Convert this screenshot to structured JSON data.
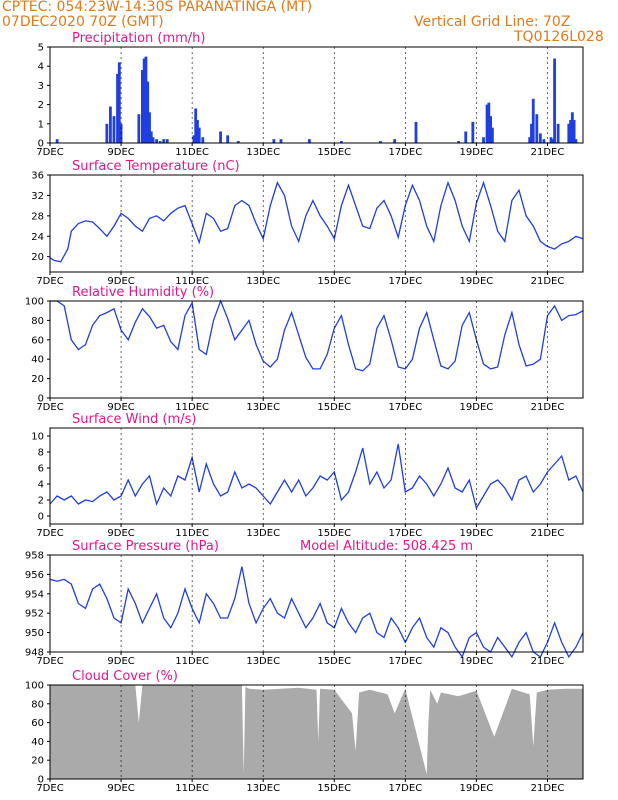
{
  "header": {
    "line1": "CPTEC:   054:23W-14:30S   PARANATINGA (MT)",
    "line2": "07DEC2020 70Z (GMT)",
    "vgrid": "Vertical Grid Line: 70Z",
    "code": "TQ0126L028"
  },
  "colors": {
    "header": "#e07a1a",
    "title": "#e0188c",
    "series": "#1f3fe0",
    "cloud": "#aaaaaa"
  },
  "x_ticks": [
    "7DEC",
    "9DEC",
    "11DEC",
    "13DEC",
    "15DEC",
    "17DEC",
    "19DEC",
    "21DEC"
  ],
  "x_tick_days": [
    7,
    9,
    11,
    13,
    15,
    17,
    19,
    21
  ],
  "chart_data": [
    {
      "id": "precip",
      "type": "bar",
      "title": "Precipitation (mm/h)",
      "ylim": [
        0,
        5
      ],
      "yticks": [
        0,
        1,
        2,
        3,
        4,
        5
      ],
      "xlim": [
        7,
        22
      ],
      "x": [
        7.2,
        8.6,
        8.7,
        8.8,
        8.9,
        8.95,
        9.0,
        9.5,
        9.6,
        9.65,
        9.7,
        9.75,
        9.8,
        9.85,
        9.9,
        10.0,
        10.1,
        10.2,
        10.3,
        11.05,
        11.1,
        11.15,
        11.2,
        11.3,
        11.8,
        12.0,
        12.3,
        13.3,
        13.5,
        14.3,
        15.2,
        16.3,
        16.7,
        17.3,
        18.5,
        18.7,
        18.9,
        19.2,
        19.3,
        19.35,
        19.4,
        19.45,
        20.5,
        20.55,
        20.6,
        20.7,
        20.8,
        20.9,
        21.1,
        21.15,
        21.2,
        21.3,
        21.6,
        21.65,
        21.7,
        21.75,
        21.8
      ],
      "values": [
        0.2,
        1.0,
        1.9,
        1.4,
        3.6,
        4.2,
        1.0,
        1.5,
        3.8,
        4.4,
        4.5,
        3.2,
        1.6,
        0.6,
        0.3,
        0.2,
        0.1,
        0.2,
        0.2,
        0.4,
        1.8,
        1.2,
        0.8,
        0.3,
        0.6,
        0.4,
        0.1,
        0.2,
        0.2,
        0.2,
        0.1,
        0.1,
        0.2,
        1.1,
        0.1,
        0.6,
        1.1,
        0.3,
        2.0,
        2.1,
        1.4,
        0.8,
        0.3,
        1.0,
        2.3,
        1.5,
        0.5,
        0.2,
        0.3,
        0.2,
        4.4,
        1.0,
        1.0,
        1.2,
        1.6,
        1.2,
        0.2
      ]
    },
    {
      "id": "temp",
      "type": "line",
      "title": "Surface Temperature (nC)",
      "ylim": [
        17,
        36
      ],
      "yticks": [
        20,
        24,
        28,
        32,
        36
      ],
      "xlim": [
        7,
        22
      ],
      "x": [
        7.0,
        7.1,
        7.3,
        7.5,
        7.6,
        7.8,
        8.0,
        8.2,
        8.4,
        8.6,
        8.8,
        9.0,
        9.2,
        9.4,
        9.6,
        9.8,
        10.0,
        10.2,
        10.4,
        10.6,
        10.8,
        11.0,
        11.2,
        11.4,
        11.6,
        11.8,
        12.0,
        12.2,
        12.4,
        12.6,
        12.8,
        13.0,
        13.2,
        13.4,
        13.6,
        13.8,
        14.0,
        14.2,
        14.4,
        14.6,
        14.8,
        15.0,
        15.2,
        15.4,
        15.6,
        15.8,
        16.0,
        16.2,
        16.4,
        16.6,
        16.8,
        17.0,
        17.2,
        17.4,
        17.6,
        17.8,
        18.0,
        18.2,
        18.4,
        18.6,
        18.8,
        19.0,
        19.2,
        19.4,
        19.6,
        19.8,
        20.0,
        20.2,
        20.4,
        20.6,
        20.8,
        21.0,
        21.2,
        21.4,
        21.6,
        21.8,
        22.0
      ],
      "values": [
        19.8,
        19.3,
        19.0,
        21.5,
        25.0,
        26.5,
        27.0,
        26.8,
        25.5,
        24.0,
        26.0,
        28.5,
        27.5,
        26.0,
        25.0,
        27.5,
        28.0,
        27.0,
        28.5,
        29.5,
        30.0,
        26.5,
        22.8,
        28.5,
        27.5,
        25.0,
        25.5,
        30.0,
        31.0,
        30.0,
        26.5,
        23.5,
        30.0,
        34.5,
        32.0,
        26.0,
        23.0,
        28.0,
        31.0,
        28.0,
        26.0,
        23.5,
        30.0,
        34.0,
        30.0,
        26.0,
        25.5,
        29.5,
        31.0,
        28.0,
        23.8,
        30.0,
        34.0,
        31.0,
        26.0,
        23.0,
        30.0,
        34.5,
        31.0,
        26.0,
        23.0,
        30.5,
        34.5,
        30.0,
        25.0,
        23.0,
        31.0,
        33.0,
        28.0,
        26.0,
        23.0,
        22.0,
        21.5,
        22.5,
        23.0,
        24.0,
        23.5
      ]
    },
    {
      "id": "rh",
      "type": "line",
      "title": "Relative Humidity (%)",
      "ylim": [
        0,
        100
      ],
      "yticks": [
        0,
        20,
        40,
        60,
        80,
        100
      ],
      "xlim": [
        7,
        22
      ],
      "x": [
        7.0,
        7.2,
        7.4,
        7.6,
        7.8,
        8.0,
        8.2,
        8.4,
        8.6,
        8.8,
        9.0,
        9.2,
        9.4,
        9.6,
        9.8,
        10.0,
        10.2,
        10.4,
        10.6,
        10.8,
        11.0,
        11.2,
        11.4,
        11.6,
        11.8,
        12.0,
        12.2,
        12.4,
        12.6,
        12.8,
        13.0,
        13.2,
        13.4,
        13.6,
        13.8,
        14.0,
        14.2,
        14.4,
        14.6,
        14.8,
        15.0,
        15.2,
        15.4,
        15.6,
        15.8,
        16.0,
        16.2,
        16.4,
        16.6,
        16.8,
        17.0,
        17.2,
        17.4,
        17.6,
        17.8,
        18.0,
        18.2,
        18.4,
        18.6,
        18.8,
        19.0,
        19.2,
        19.4,
        19.6,
        19.8,
        20.0,
        20.2,
        20.4,
        20.6,
        20.8,
        21.0,
        21.2,
        21.4,
        21.6,
        21.8,
        22.0
      ],
      "values": [
        100,
        100,
        95,
        60,
        50,
        55,
        75,
        85,
        88,
        92,
        70,
        60,
        78,
        92,
        84,
        72,
        75,
        58,
        50,
        85,
        98,
        50,
        45,
        80,
        100,
        82,
        60,
        70,
        80,
        55,
        38,
        32,
        40,
        70,
        88,
        65,
        42,
        30,
        30,
        45,
        72,
        85,
        55,
        30,
        28,
        35,
        72,
        85,
        60,
        32,
        30,
        40,
        72,
        88,
        60,
        33,
        30,
        38,
        75,
        88,
        60,
        35,
        30,
        32,
        65,
        88,
        55,
        33,
        35,
        40,
        85,
        95,
        80,
        85,
        86,
        90
      ]
    },
    {
      "id": "wind",
      "type": "line",
      "title": "Surface Wind (m/s)",
      "ylim": [
        -1,
        11
      ],
      "yticks": [
        0,
        2,
        4,
        6,
        8,
        10
      ],
      "xlim": [
        7,
        22
      ],
      "x": [
        7.0,
        7.2,
        7.4,
        7.6,
        7.8,
        8.0,
        8.2,
        8.4,
        8.6,
        8.8,
        9.0,
        9.2,
        9.4,
        9.6,
        9.8,
        10.0,
        10.2,
        10.4,
        10.6,
        10.8,
        11.0,
        11.2,
        11.4,
        11.6,
        11.8,
        12.0,
        12.2,
        12.4,
        12.6,
        12.8,
        13.0,
        13.2,
        13.4,
        13.6,
        13.8,
        14.0,
        14.2,
        14.4,
        14.6,
        14.8,
        15.0,
        15.2,
        15.4,
        15.6,
        15.8,
        16.0,
        16.2,
        16.4,
        16.6,
        16.8,
        17.0,
        17.2,
        17.4,
        17.6,
        17.8,
        18.0,
        18.2,
        18.4,
        18.6,
        18.8,
        19.0,
        19.2,
        19.4,
        19.6,
        19.8,
        20.0,
        20.2,
        20.4,
        20.6,
        20.8,
        21.0,
        21.2,
        21.4,
        21.6,
        21.8,
        22.0
      ],
      "values": [
        1.5,
        2.5,
        2.0,
        2.5,
        1.5,
        2.0,
        1.8,
        2.5,
        3.0,
        2.0,
        2.5,
        4.5,
        2.5,
        4.0,
        5.0,
        1.5,
        3.5,
        2.5,
        5.0,
        4.5,
        7.3,
        3.0,
        6.5,
        4.0,
        2.5,
        3.0,
        5.5,
        3.5,
        4.0,
        3.5,
        2.5,
        1.5,
        3.0,
        4.5,
        3.0,
        4.5,
        2.5,
        3.5,
        5.0,
        4.5,
        5.5,
        2.0,
        3.0,
        5.5,
        8.5,
        4.0,
        5.5,
        3.5,
        4.5,
        9.0,
        3.0,
        3.5,
        5.0,
        4.0,
        2.5,
        4.0,
        6.0,
        3.5,
        3.0,
        4.5,
        1.0,
        2.5,
        4.0,
        4.5,
        3.5,
        2.0,
        4.5,
        5.0,
        3.0,
        4.0,
        5.5,
        6.5,
        7.5,
        4.5,
        5.0,
        3.0
      ]
    },
    {
      "id": "pressure",
      "type": "line",
      "title": "Surface Pressure (hPa)",
      "annotation": "Model Altitude: 508.425 m",
      "ylim": [
        948,
        958
      ],
      "yticks": [
        948,
        950,
        952,
        954,
        956,
        958
      ],
      "xlim": [
        7,
        22
      ],
      "x": [
        7.0,
        7.2,
        7.4,
        7.6,
        7.8,
        8.0,
        8.2,
        8.4,
        8.6,
        8.8,
        9.0,
        9.2,
        9.4,
        9.6,
        9.8,
        10.0,
        10.2,
        10.4,
        10.6,
        10.8,
        11.0,
        11.2,
        11.4,
        11.6,
        11.8,
        12.0,
        12.2,
        12.4,
        12.6,
        12.8,
        13.0,
        13.2,
        13.4,
        13.6,
        13.8,
        14.0,
        14.2,
        14.4,
        14.6,
        14.8,
        15.0,
        15.2,
        15.4,
        15.6,
        15.8,
        16.0,
        16.2,
        16.4,
        16.6,
        16.8,
        17.0,
        17.2,
        17.4,
        17.6,
        17.8,
        18.0,
        18.2,
        18.4,
        18.6,
        18.8,
        19.0,
        19.2,
        19.4,
        19.6,
        19.8,
        20.0,
        20.2,
        20.4,
        20.6,
        20.8,
        21.0,
        21.2,
        21.4,
        21.6,
        21.8,
        22.0
      ],
      "values": [
        955.5,
        955.3,
        955.5,
        955.0,
        953.0,
        952.5,
        954.5,
        955.0,
        953.5,
        951.5,
        951.0,
        954.5,
        953.0,
        951.0,
        952.5,
        954.0,
        951.5,
        950.5,
        952.0,
        954.5,
        952.5,
        951.0,
        954.0,
        953.0,
        951.5,
        951.5,
        953.5,
        956.8,
        953.0,
        951.0,
        952.5,
        953.5,
        952.0,
        951.5,
        953.5,
        952.0,
        950.5,
        951.5,
        953.0,
        951.0,
        950.5,
        952.5,
        951.0,
        950.0,
        951.5,
        952.0,
        950.0,
        949.5,
        951.5,
        950.5,
        949.0,
        950.5,
        951.5,
        949.5,
        948.5,
        950.5,
        950.0,
        948.5,
        947.5,
        949.5,
        950.0,
        948.5,
        948.0,
        949.5,
        948.5,
        947.5,
        949.0,
        950.0,
        948.0,
        947.5,
        949.0,
        951.0,
        949.0,
        947.5,
        948.5,
        950.0
      ]
    },
    {
      "id": "cloud",
      "type": "area",
      "title": "Cloud Cover (%)",
      "ylim": [
        0,
        100
      ],
      "yticks": [
        0,
        20,
        40,
        60,
        80,
        100
      ],
      "xlim": [
        7,
        22
      ],
      "x": [
        7.0,
        8.0,
        9.0,
        9.4,
        9.5,
        9.6,
        10.0,
        11.0,
        12.0,
        12.4,
        12.45,
        12.5,
        12.6,
        13.0,
        14.0,
        14.5,
        14.55,
        14.6,
        15.0,
        15.5,
        15.6,
        15.7,
        16.0,
        16.5,
        16.7,
        17.0,
        17.6,
        17.65,
        17.7,
        17.9,
        18.0,
        18.5,
        19.0,
        19.5,
        20.0,
        20.5,
        20.6,
        20.7,
        21.0,
        21.5,
        22.0
      ],
      "values": [
        100,
        100,
        100,
        100,
        60,
        100,
        100,
        100,
        100,
        100,
        5,
        98,
        96,
        95,
        97,
        95,
        40,
        96,
        95,
        70,
        30,
        92,
        95,
        90,
        70,
        96,
        5,
        60,
        95,
        80,
        92,
        88,
        94,
        45,
        96,
        90,
        35,
        92,
        95,
        96,
        96
      ]
    }
  ]
}
